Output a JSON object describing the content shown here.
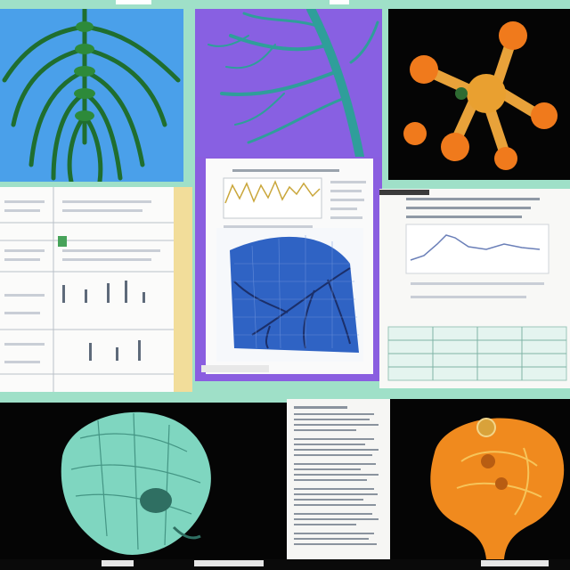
{
  "colors": {
    "background": "#9fe0c8",
    "panel_blue": "#47a6e6",
    "panel_purple": "#8a5ee0",
    "panel_black": "#050505",
    "vessel_green": "#1f6e2f",
    "vessel_teal": "#2f9e9a",
    "organ_orange": "#f08a1e",
    "skull_teal": "#7fd6c0",
    "chart_line_gold": "#c9a63a",
    "chart_line_blue": "#6a7fb8",
    "map_blue": "#2f63c4"
  },
  "panels": [
    {
      "name": "spine-ribcage-render",
      "icon": "spine-vessels-icon"
    },
    {
      "name": "vascular-tree-render",
      "icon": "vascular-tree-icon"
    },
    {
      "name": "molecule-render",
      "icon": "molecule-icon"
    },
    {
      "name": "spreadsheet-document",
      "icon": "spreadsheet-icon"
    },
    {
      "name": "line-chart-document",
      "icon": "line-chart-icon"
    },
    {
      "name": "vein-map-image",
      "icon": "vein-map-icon"
    },
    {
      "name": "trend-chart-document",
      "icon": "trend-chart-icon"
    },
    {
      "name": "skull-render",
      "icon": "skull-icon"
    },
    {
      "name": "text-document",
      "icon": "text-document-icon"
    },
    {
      "name": "organ-render",
      "icon": "organ-icon"
    }
  ]
}
